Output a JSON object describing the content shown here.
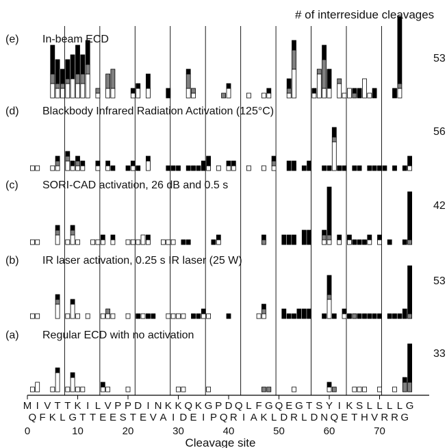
{
  "chart_data": {
    "type": "bar",
    "stacked": true,
    "title": "# of interresidue cleavages",
    "xlabel": "Cleavage site",
    "xlim": [
      0,
      76
    ],
    "x_ticks": [
      0,
      10,
      20,
      30,
      40,
      50,
      60,
      70
    ],
    "sequence_top": [
      "M",
      "I",
      "V",
      "T",
      "T",
      "K",
      "I",
      "L",
      "V",
      "P",
      "P",
      "D",
      "I",
      "N",
      "K",
      "K",
      "Q",
      "K",
      "G",
      "P",
      "D",
      "Q",
      "L",
      "F",
      "G",
      "Q",
      "E",
      "G",
      "T",
      "S",
      "Y",
      "I",
      "K",
      "S",
      "L",
      "L",
      "L",
      "L",
      "G"
    ],
    "sequence_bottom": [
      "Q",
      "F",
      "K",
      "L",
      "G",
      "T",
      "T",
      "E",
      "E",
      "S",
      "T",
      "E",
      "V",
      "A",
      "I",
      "D",
      "E",
      "I",
      "P",
      "Q",
      "R",
      "I",
      "A",
      "K",
      "L",
      "D",
      "R",
      "L",
      "D",
      "N",
      "Q",
      "E",
      "T",
      "H",
      "V",
      "R",
      "R",
      "G"
    ],
    "series_colors": {
      "white": "#ffffff",
      "gray": "#808080",
      "black": "#000000"
    },
    "panels": [
      {
        "id": "(e)",
        "label": "In-beam ECD",
        "count": "53",
        "bars": [
          [
            5,
            3,
            2,
            6
          ],
          [
            6,
            2,
            1,
            5
          ],
          [
            7,
            2,
            1,
            3
          ],
          [
            8,
            3,
            1,
            4
          ],
          [
            9,
            4,
            0,
            5
          ],
          [
            10,
            3,
            2,
            6
          ],
          [
            11,
            3,
            2,
            4
          ],
          [
            12,
            5,
            2,
            5
          ],
          [
            14,
            1,
            1,
            0
          ],
          [
            16,
            2,
            3,
            0
          ],
          [
            17,
            2,
            4,
            0
          ],
          [
            21,
            1,
            0,
            1
          ],
          [
            22,
            2,
            0,
            1
          ],
          [
            24,
            2,
            0,
            3
          ],
          [
            28,
            0,
            0,
            2
          ],
          [
            32,
            2,
            3,
            1
          ],
          [
            33,
            1,
            1,
            0
          ],
          [
            39,
            0,
            1,
            0
          ],
          [
            40,
            2,
            0,
            1
          ],
          [
            44,
            1,
            0,
            0
          ],
          [
            47,
            1,
            0,
            0
          ],
          [
            48,
            1,
            0,
            1
          ],
          [
            52,
            1,
            1,
            2
          ],
          [
            53,
            6,
            4,
            2
          ],
          [
            57,
            1,
            0,
            1
          ],
          [
            58,
            5,
            1,
            0
          ],
          [
            59,
            2,
            6,
            3
          ],
          [
            60,
            2,
            0,
            4
          ],
          [
            62,
            3,
            1,
            0
          ],
          [
            63,
            1,
            0,
            0
          ],
          [
            64,
            2,
            0,
            0
          ],
          [
            65,
            0,
            1,
            1
          ],
          [
            66,
            0,
            0,
            2
          ],
          [
            67,
            4,
            0,
            0
          ],
          [
            68,
            1,
            0,
            0
          ],
          [
            69,
            0,
            0,
            2
          ],
          [
            73,
            0,
            0,
            2
          ],
          [
            74,
            2,
            1,
            14
          ]
        ]
      },
      {
        "id": "(d)",
        "label": "Blackbody Infrared Radiation Activation (125°C)",
        "count": "56",
        "bars": [
          [
            1,
            1,
            0,
            0
          ],
          [
            2,
            1,
            0,
            0
          ],
          [
            5,
            1,
            0,
            0
          ],
          [
            6,
            1,
            1,
            1
          ],
          [
            8,
            2,
            1,
            1
          ],
          [
            9,
            1,
            0,
            1
          ],
          [
            10,
            1,
            1,
            1
          ],
          [
            11,
            1,
            0,
            1
          ],
          [
            14,
            1,
            0,
            1
          ],
          [
            16,
            1,
            0,
            1
          ],
          [
            17,
            0,
            0,
            1
          ],
          [
            20,
            0,
            0,
            1
          ],
          [
            21,
            1,
            0,
            1
          ],
          [
            22,
            0,
            0,
            1
          ],
          [
            24,
            2,
            0,
            1
          ],
          [
            28,
            0,
            0,
            1
          ],
          [
            29,
            0,
            0,
            1
          ],
          [
            30,
            0,
            0,
            1
          ],
          [
            32,
            0,
            0,
            1
          ],
          [
            33,
            0,
            0,
            1
          ],
          [
            34,
            0,
            0,
            1
          ],
          [
            35,
            0,
            0,
            2
          ],
          [
            36,
            1,
            0,
            2
          ],
          [
            38,
            1,
            0,
            0
          ],
          [
            40,
            1,
            0,
            1
          ],
          [
            41,
            1,
            0,
            1
          ],
          [
            44,
            1,
            0,
            0
          ],
          [
            47,
            1,
            0,
            0
          ],
          [
            49,
            1,
            1,
            1
          ],
          [
            52,
            0,
            0,
            2
          ],
          [
            53,
            0,
            0,
            2
          ],
          [
            55,
            0,
            0,
            1
          ],
          [
            56,
            0,
            0,
            2
          ],
          [
            59,
            0,
            0,
            1
          ],
          [
            60,
            0,
            0,
            1
          ],
          [
            61,
            6,
            1,
            2
          ],
          [
            62,
            0,
            0,
            1
          ],
          [
            63,
            0,
            0,
            1
          ],
          [
            65,
            0,
            0,
            1
          ],
          [
            66,
            0,
            0,
            1
          ],
          [
            68,
            0,
            0,
            1
          ],
          [
            69,
            0,
            0,
            1
          ],
          [
            70,
            0,
            0,
            1
          ],
          [
            71,
            0,
            0,
            1
          ],
          [
            73,
            0,
            0,
            1
          ],
          [
            75,
            0,
            0,
            1
          ],
          [
            76,
            1,
            0,
            2
          ]
        ]
      },
      {
        "id": "(c)",
        "label": "SORI-CAD activation,  26 dB and 0.5 s",
        "count": "42",
        "bars": [
          [
            1,
            1,
            0,
            0
          ],
          [
            2,
            1,
            0,
            0
          ],
          [
            6,
            2,
            1,
            1
          ],
          [
            8,
            1,
            0,
            0
          ],
          [
            9,
            2,
            1,
            1
          ],
          [
            10,
            1,
            0,
            0
          ],
          [
            13,
            1,
            0,
            0
          ],
          [
            14,
            1,
            0,
            0
          ],
          [
            15,
            1,
            0,
            1
          ],
          [
            17,
            1,
            0,
            1
          ],
          [
            20,
            1,
            0,
            0
          ],
          [
            21,
            1,
            0,
            0
          ],
          [
            22,
            1,
            0,
            0
          ],
          [
            23,
            2,
            0,
            0
          ],
          [
            24,
            1,
            0,
            1
          ],
          [
            27,
            1,
            0,
            0
          ],
          [
            28,
            1,
            0,
            0
          ],
          [
            29,
            1,
            0,
            0
          ],
          [
            31,
            0,
            0,
            1
          ],
          [
            32,
            0,
            0,
            1
          ],
          [
            37,
            0,
            0,
            1
          ],
          [
            38,
            1,
            0,
            1
          ],
          [
            47,
            0,
            1,
            1
          ],
          [
            51,
            0,
            0,
            2
          ],
          [
            52,
            0,
            0,
            2
          ],
          [
            53,
            0,
            0,
            2
          ],
          [
            55,
            0,
            0,
            3
          ],
          [
            56,
            0,
            0,
            3
          ],
          [
            59,
            1,
            1,
            1
          ],
          [
            60,
            1,
            1,
            10
          ],
          [
            62,
            1,
            0,
            1
          ],
          [
            64,
            1,
            0,
            1
          ],
          [
            65,
            0,
            0,
            1
          ],
          [
            66,
            0,
            0,
            1
          ],
          [
            67,
            0,
            0,
            1
          ],
          [
            68,
            1,
            0,
            1
          ],
          [
            70,
            1,
            0,
            1
          ],
          [
            72,
            0,
            0,
            1
          ],
          [
            75,
            0,
            0,
            1
          ],
          [
            76,
            0,
            1,
            10
          ]
        ]
      },
      {
        "id": "(b)",
        "label": "IR laser activation, 0.25 s IR laser (25 W)",
        "count": "53",
        "bars": [
          [
            1,
            1,
            0,
            0
          ],
          [
            2,
            1,
            0,
            0
          ],
          [
            6,
            3,
            1,
            1
          ],
          [
            8,
            1,
            0,
            0
          ],
          [
            9,
            3,
            0,
            1
          ],
          [
            10,
            1,
            0,
            0
          ],
          [
            12,
            1,
            0,
            0
          ],
          [
            15,
            1,
            0,
            0
          ],
          [
            16,
            1,
            1,
            0
          ],
          [
            17,
            1,
            0,
            0
          ],
          [
            20,
            1,
            0,
            0
          ],
          [
            22,
            0,
            0,
            1
          ],
          [
            23,
            1,
            0,
            0
          ],
          [
            24,
            0,
            0,
            1
          ],
          [
            25,
            0,
            0,
            1
          ],
          [
            28,
            1,
            0,
            0
          ],
          [
            29,
            1,
            0,
            0
          ],
          [
            30,
            1,
            0,
            0
          ],
          [
            31,
            1,
            0,
            0
          ],
          [
            33,
            0,
            0,
            1
          ],
          [
            34,
            0,
            0,
            1
          ],
          [
            35,
            1,
            0,
            1
          ],
          [
            36,
            1,
            0,
            0
          ],
          [
            40,
            0,
            0,
            1
          ],
          [
            46,
            1,
            0,
            0
          ],
          [
            47,
            1,
            1,
            1
          ],
          [
            51,
            0,
            0,
            2
          ],
          [
            52,
            0,
            0,
            1
          ],
          [
            53,
            0,
            0,
            1
          ],
          [
            54,
            0,
            0,
            2
          ],
          [
            55,
            0,
            0,
            2
          ],
          [
            56,
            0,
            0,
            2
          ],
          [
            59,
            0,
            0,
            1
          ],
          [
            60,
            4,
            1,
            4
          ],
          [
            61,
            0,
            0,
            1
          ],
          [
            63,
            1,
            0,
            1
          ],
          [
            64,
            0,
            0,
            1
          ],
          [
            65,
            0,
            1,
            0
          ],
          [
            66,
            0,
            0,
            1
          ],
          [
            67,
            0,
            0,
            1
          ],
          [
            68,
            0,
            0,
            1
          ],
          [
            69,
            0,
            0,
            1
          ],
          [
            70,
            0,
            0,
            1
          ],
          [
            72,
            0,
            0,
            1
          ],
          [
            73,
            0,
            0,
            1
          ],
          [
            74,
            0,
            0,
            1
          ],
          [
            75,
            0,
            0,
            2
          ],
          [
            76,
            0,
            1,
            10
          ]
        ]
      },
      {
        "id": "(a)",
        "label": "Regular ECD with no activation",
        "count": "33",
        "bars": [
          [
            1,
            1,
            0,
            0
          ],
          [
            2,
            2,
            0,
            0
          ],
          [
            5,
            1,
            0,
            0
          ],
          [
            6,
            4,
            0,
            1
          ],
          [
            8,
            1,
            0,
            0
          ],
          [
            9,
            3,
            0,
            1
          ],
          [
            10,
            1,
            0,
            0
          ],
          [
            11,
            1,
            0,
            0
          ],
          [
            15,
            1,
            0,
            1
          ],
          [
            16,
            1,
            0,
            0
          ],
          [
            20,
            1,
            0,
            0
          ],
          [
            30,
            1,
            0,
            0
          ],
          [
            31,
            1,
            0,
            0
          ],
          [
            36,
            1,
            0,
            0
          ],
          [
            47,
            0,
            1,
            0
          ],
          [
            48,
            0,
            1,
            0
          ],
          [
            53,
            1,
            0,
            0
          ],
          [
            60,
            1,
            0,
            1
          ],
          [
            61,
            0,
            1,
            0
          ],
          [
            65,
            1,
            0,
            0
          ],
          [
            66,
            1,
            0,
            0
          ],
          [
            67,
            1,
            0,
            0
          ],
          [
            70,
            1,
            0,
            0
          ],
          [
            73,
            1,
            0,
            0
          ],
          [
            75,
            0,
            2,
            1
          ],
          [
            76,
            0,
            2,
            8
          ]
        ]
      }
    ]
  }
}
